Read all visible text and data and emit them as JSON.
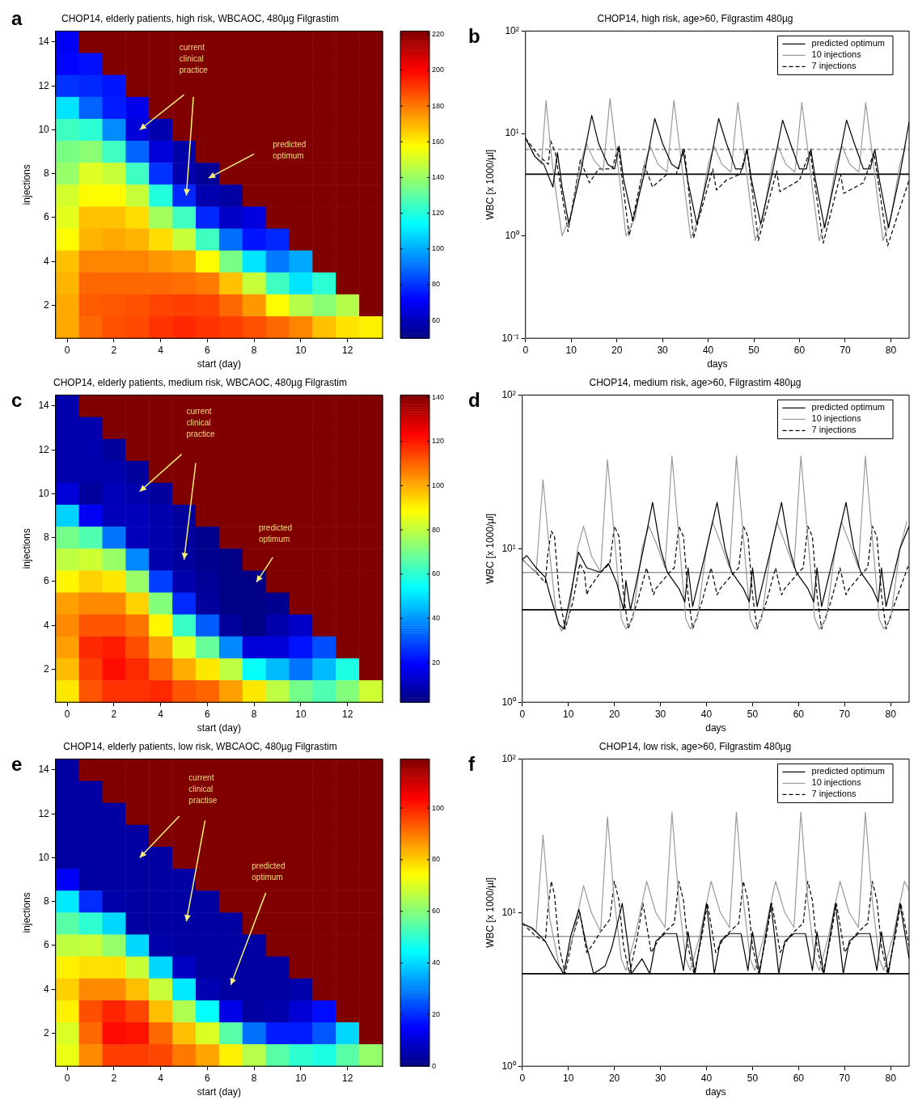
{
  "chart_data": [
    {
      "type": "heatmap",
      "title": "CHOP14, elderly patients, high risk, WBCAOC, 480µg Filgrastim",
      "xlabel": "start (day)",
      "ylabel": "injections",
      "annotations": [
        "a",
        "current clinical practice",
        "predicted optimum"
      ],
      "categories": [
        "0",
        null,
        "2",
        null,
        "4",
        null,
        "6",
        null,
        "8",
        null,
        "10",
        null,
        "12",
        null
      ],
      "y_categories": [
        "14",
        null,
        "12",
        null,
        "10",
        null,
        "8",
        null,
        "6",
        null,
        "4",
        null,
        "2",
        null
      ],
      "clim": [
        50,
        222
      ],
      "cticks": [
        60,
        80,
        100,
        120,
        140,
        160,
        180,
        200,
        220
      ],
      "cells": [
        [
          70,
          222,
          222,
          222,
          222,
          222,
          222,
          222,
          222,
          222,
          222,
          222,
          222,
          222
        ],
        [
          72,
          74,
          222,
          222,
          222,
          222,
          222,
          222,
          222,
          222,
          222,
          222,
          222,
          222
        ],
        [
          80,
          78,
          75,
          222,
          222,
          222,
          222,
          222,
          222,
          222,
          222,
          222,
          222,
          222
        ],
        [
          110,
          88,
          76,
          68,
          222,
          222,
          222,
          222,
          222,
          222,
          222,
          222,
          222,
          222
        ],
        [
          125,
          122,
          95,
          65,
          58,
          222,
          222,
          222,
          222,
          222,
          222,
          222,
          222,
          222
        ],
        [
          135,
          138,
          125,
          88,
          65,
          57,
          222,
          222,
          222,
          222,
          222,
          222,
          222,
          222
        ],
        [
          140,
          152,
          148,
          125,
          80,
          58,
          54,
          222,
          222,
          222,
          222,
          222,
          222,
          222
        ],
        [
          150,
          158,
          158,
          148,
          120,
          78,
          58,
          56,
          222,
          222,
          222,
          222,
          222,
          222
        ],
        [
          153,
          168,
          168,
          163,
          142,
          125,
          78,
          62,
          66,
          222,
          222,
          222,
          222,
          222
        ],
        [
          158,
          170,
          172,
          170,
          163,
          148,
          125,
          90,
          75,
          78,
          222,
          222,
          222,
          222
        ],
        [
          168,
          178,
          178,
          178,
          175,
          173,
          158,
          135,
          110,
          92,
          100,
          222,
          222,
          222
        ],
        [
          170,
          183,
          183,
          183,
          183,
          182,
          180,
          168,
          148,
          125,
          110,
          122,
          222,
          222
        ],
        [
          172,
          185,
          186,
          187,
          189,
          190,
          189,
          183,
          175,
          158,
          145,
          138,
          145,
          222
        ],
        [
          172,
          183,
          187,
          188,
          192,
          194,
          192,
          190,
          187,
          183,
          178,
          168,
          162,
          160
        ]
      ]
    },
    {
      "type": "line",
      "title": "CHOP14, high risk, age>60, Filgrastim 480µg",
      "xlabel": "days",
      "ylabel": "WBC [x 1000/µl]",
      "annotations": [
        "b"
      ],
      "log": true,
      "legend": "top right",
      "xlim": [
        0,
        84
      ],
      "xticks": [
        0,
        10,
        20,
        30,
        40,
        50,
        60,
        70,
        80
      ],
      "ylim": [
        0.1,
        100
      ],
      "yticks": [
        {
          "value": 0.1,
          "label": "10⁻¹"
        },
        {
          "value": 1,
          "label": "10⁰"
        },
        {
          "value": 10,
          "label": "10¹"
        },
        {
          "value": 100,
          "label": "10²"
        }
      ],
      "ref_lines": [
        {
          "axis": "y",
          "value": 4,
          "color": "#000000"
        },
        {
          "axis": "y",
          "value": 7,
          "color": "#999999",
          "line_style": "dashed"
        }
      ],
      "series": [
        {
          "name": "predicted optimum",
          "color": "#000000",
          "x": [
            0,
            2,
            4,
            6,
            7,
            8,
            9.5,
            12,
            14.5,
            16,
            18,
            19.5,
            20.5,
            21.5,
            23.5,
            26,
            28.3,
            30,
            32,
            33.5,
            34.5,
            35.5,
            37.5,
            40,
            42.3,
            44,
            46,
            47.5,
            48.5,
            49.5,
            51.5,
            54,
            56.3,
            58,
            60,
            61.5,
            62.5,
            63.5,
            65.5,
            68,
            70.3,
            72,
            74,
            75.5,
            76.5,
            77.5,
            79.5,
            82,
            84
          ],
          "values": [
            9,
            6,
            5,
            3,
            6.5,
            3,
            1.3,
            4,
            15,
            8,
            5,
            4.5,
            7.5,
            3.5,
            1.4,
            4,
            14,
            8,
            5,
            4.5,
            7,
            3.5,
            1.3,
            4,
            14,
            8,
            4.5,
            4.5,
            7,
            3.5,
            1.3,
            4,
            13.5,
            8,
            4.5,
            4.5,
            7,
            3.5,
            1.2,
            4,
            13.5,
            8,
            4.5,
            4.5,
            7,
            3.5,
            1.2,
            4,
            13
          ]
        },
        {
          "name": "10 injections",
          "color": "#999999",
          "x": [
            0,
            2,
            3.5,
            4.5,
            5.5,
            6.5,
            8,
            10,
            12,
            13.3,
            15,
            17,
            18.5,
            19.8,
            21,
            22,
            24,
            26,
            27.3,
            29,
            31,
            32.5,
            33.8,
            35,
            36.2,
            38,
            40,
            41.3,
            43,
            45,
            46.5,
            47.8,
            49,
            50.3,
            52,
            54,
            55.3,
            57,
            59,
            60.5,
            61.8,
            63,
            64.3,
            66,
            68,
            69.3,
            71,
            73,
            74.5,
            75.8,
            77,
            78.3,
            80,
            82,
            83.3
          ],
          "values": [
            9,
            6,
            5,
            21,
            7,
            3,
            1.0,
            1.6,
            5,
            8,
            5.5,
            4.3,
            22,
            7,
            2.5,
            1.0,
            1.5,
            5,
            7.5,
            5,
            4.2,
            21,
            7,
            2.5,
            0.95,
            1.5,
            5,
            7.5,
            5,
            4.2,
            20,
            7,
            2.5,
            0.9,
            1.5,
            5,
            7.5,
            5,
            4.2,
            20,
            7,
            2.5,
            0.9,
            1.5,
            5,
            7.5,
            5,
            4.2,
            20,
            7,
            2.5,
            0.9,
            1.5,
            5,
            7.5
          ]
        },
        {
          "name": "7 injections",
          "color": "#000000",
          "line_style": "dashed",
          "x": [
            0,
            3,
            5,
            5.5,
            6.5,
            9.3,
            12,
            14,
            16,
            19,
            20.3,
            22.7,
            26,
            27.8,
            31,
            33,
            34.8,
            36.8,
            41,
            41.8,
            44,
            47,
            48.5,
            51,
            55,
            55.7,
            60,
            62.3,
            65.2,
            69,
            69.7,
            74,
            76.3,
            79.3,
            84
          ],
          "values": [
            9,
            6,
            5,
            8.5,
            6.5,
            1.1,
            5.5,
            3.3,
            4.5,
            4.5,
            7.5,
            1.0,
            5,
            3,
            4,
            4,
            7,
            0.95,
            4.5,
            2.8,
            3.5,
            4,
            7,
            0.9,
            4.3,
            2.7,
            3.5,
            6.8,
            0.85,
            4,
            2.6,
            3.3,
            6.5,
            0.8,
            3.5
          ]
        }
      ]
    },
    {
      "type": "heatmap",
      "title": "CHOP14, elderly patients, medium risk, WBCAOC, 480µg Filgrastim",
      "xlabel": "start (day)",
      "ylabel": "injections",
      "annotations": [
        "c",
        "current clinical practice",
        "predicted optimum"
      ],
      "categories": [
        "0",
        null,
        "2",
        null,
        "4",
        null,
        "6",
        null,
        "8",
        null,
        "10",
        null,
        "12",
        null
      ],
      "y_categories": [
        "14",
        null,
        "12",
        null,
        "10",
        null,
        "8",
        null,
        "6",
        null,
        "4",
        null,
        "2",
        null
      ],
      "clim": [
        2,
        141
      ],
      "cticks": [
        20,
        40,
        60,
        80,
        100,
        120,
        140
      ],
      "cells": [
        [
          8,
          141,
          141,
          141,
          141,
          141,
          141,
          141,
          141,
          141,
          141,
          141,
          141,
          141
        ],
        [
          8,
          8,
          141,
          141,
          141,
          141,
          141,
          141,
          141,
          141,
          141,
          141,
          141,
          141
        ],
        [
          8,
          8,
          6,
          141,
          141,
          141,
          141,
          141,
          141,
          141,
          141,
          141,
          141,
          141
        ],
        [
          8,
          8,
          8,
          6,
          141,
          141,
          141,
          141,
          141,
          141,
          141,
          141,
          141,
          141
        ],
        [
          14,
          6,
          10,
          8,
          6,
          141,
          141,
          141,
          141,
          141,
          141,
          141,
          141,
          141
        ],
        [
          48,
          18,
          10,
          10,
          8,
          6,
          141,
          141,
          141,
          141,
          141,
          141,
          141,
          141
        ],
        [
          70,
          65,
          35,
          10,
          8,
          6,
          4,
          141,
          141,
          141,
          141,
          141,
          141,
          141
        ],
        [
          80,
          82,
          75,
          38,
          8,
          6,
          4,
          3,
          141,
          141,
          141,
          141,
          141,
          141
        ],
        [
          90,
          95,
          92,
          75,
          28,
          8,
          5,
          3,
          3,
          141,
          141,
          141,
          141,
          141
        ],
        [
          102,
          105,
          105,
          95,
          72,
          25,
          6,
          3,
          3,
          4,
          141,
          141,
          141,
          141
        ],
        [
          105,
          112,
          112,
          108,
          90,
          62,
          32,
          6,
          3,
          8,
          12,
          141,
          141,
          141
        ],
        [
          102,
          118,
          120,
          113,
          102,
          85,
          68,
          38,
          14,
          14,
          22,
          30,
          141,
          141
        ],
        [
          98,
          115,
          122,
          118,
          110,
          100,
          92,
          80,
          55,
          45,
          35,
          45,
          58,
          141
        ],
        [
          92,
          112,
          117,
          117,
          118,
          112,
          110,
          102,
          92,
          80,
          70,
          65,
          72,
          82
        ]
      ]
    },
    {
      "type": "line",
      "title": "CHOP14, medium risk, age>60, Filgrastim 480µg",
      "xlabel": "days",
      "ylabel": "WBC [x 1000/µl]",
      "annotations": [
        "d"
      ],
      "log": true,
      "legend": "top right",
      "xlim": [
        0,
        84
      ],
      "xticks": [
        0,
        10,
        20,
        30,
        40,
        50,
        60,
        70,
        80
      ],
      "ylim": [
        1,
        100
      ],
      "yticks": [
        {
          "value": 1,
          "label": "10⁰"
        },
        {
          "value": 10,
          "label": "10¹"
        },
        {
          "value": 100,
          "label": "10²"
        }
      ],
      "ref_lines": [
        {
          "axis": "y",
          "value": 4,
          "color": "#000000"
        },
        {
          "axis": "y",
          "value": 7,
          "color": "#999999"
        }
      ],
      "series": [
        {
          "name": "predicted optimum",
          "color": "#000000",
          "x": [
            0,
            1,
            3,
            5,
            6,
            8,
            9,
            10.5,
            12.2,
            14,
            17,
            18.7,
            20.5,
            22,
            22.5,
            23.5,
            26,
            28.3,
            30,
            31.5,
            34,
            35.3,
            36,
            37,
            40,
            42.3,
            44,
            45.5,
            48,
            49.3,
            50,
            51,
            54,
            56.3,
            58,
            59.5,
            62,
            63.3,
            64,
            65,
            68,
            70.3,
            72,
            73.5,
            76,
            77.3,
            78,
            79,
            82,
            84
          ],
          "values": [
            8.5,
            9,
            7.5,
            6.5,
            5,
            3.2,
            3.0,
            5,
            9.5,
            7.5,
            7,
            8,
            6,
            4,
            6.2,
            4,
            9,
            20,
            10,
            7,
            5.5,
            4.5,
            7.5,
            4.2,
            10,
            20,
            10,
            7,
            5.5,
            4.5,
            7.5,
            4.2,
            10,
            20,
            10,
            7,
            5.5,
            4.5,
            7.5,
            4.2,
            10,
            20,
            10,
            7,
            5.5,
            4.5,
            7.5,
            4.2,
            10,
            14
          ]
        },
        {
          "name": "10 injections",
          "color": "#999999",
          "x": [
            0,
            3,
            4.5,
            6,
            7.5,
            8.5,
            10,
            12,
            13.3,
            15,
            17,
            18.5,
            20,
            21.5,
            22.5,
            24,
            26,
            27.5,
            29,
            31,
            32.5,
            34,
            35.5,
            36.5,
            38,
            40,
            41.3,
            43,
            45,
            46.5,
            48,
            49.5,
            50.5,
            52,
            54,
            55.3,
            57,
            59,
            60.5,
            62,
            63.5,
            64.5,
            66,
            68,
            69.3,
            71,
            73,
            74.5,
            76,
            77.5,
            78.5,
            80,
            82,
            83.5
          ],
          "values": [
            8.5,
            7,
            28,
            9,
            3.5,
            2.9,
            3.5,
            10,
            14,
            9,
            7,
            38,
            12,
            3.5,
            3.0,
            3.5,
            10,
            14,
            11,
            7.5,
            40,
            12,
            3.5,
            3.0,
            3.5,
            10,
            15,
            11,
            7.5,
            40,
            12,
            3.5,
            3.0,
            3.5,
            10,
            15,
            11,
            7.5,
            40,
            12,
            3.5,
            3.0,
            3.5,
            10,
            15,
            11,
            7.5,
            40,
            12,
            3.5,
            3.0,
            3.5,
            10,
            15
          ]
        },
        {
          "name": "7 injections",
          "color": "#000000",
          "line_style": "dashed",
          "x": [
            0,
            3,
            5,
            5.5,
            6.3,
            7,
            8,
            9.3,
            11,
            12.5,
            13.5,
            14,
            14.5,
            17,
            19,
            20,
            21,
            22,
            23,
            25,
            27,
            28.5,
            29,
            32,
            33,
            34,
            35,
            36,
            37,
            39,
            41,
            42.3,
            43,
            46,
            47,
            48,
            49,
            50,
            51,
            53,
            55,
            56.3,
            57,
            60,
            61,
            62,
            63,
            64,
            65,
            67,
            69,
            70.3,
            71,
            74,
            75,
            76,
            77,
            78,
            79,
            81,
            84
          ],
          "values": [
            8.5,
            7,
            6,
            9,
            13,
            12,
            5,
            3,
            4.5,
            8,
            7,
            5,
            5.5,
            7,
            8,
            14,
            12,
            5,
            3,
            4.5,
            7.5,
            5,
            5.5,
            7,
            7.5,
            14,
            12,
            5,
            3,
            4.5,
            7.5,
            5,
            5.5,
            7,
            7.5,
            14,
            12,
            5,
            3,
            4.5,
            7.5,
            5,
            5.5,
            7,
            7.5,
            14,
            12,
            5,
            3,
            4.5,
            7.5,
            5,
            5.5,
            7,
            7.5,
            14,
            12,
            5,
            3,
            4.5,
            8
          ]
        }
      ]
    },
    {
      "type": "heatmap",
      "title": "CHOP14, elderly patients, low risk, WBCAOC, 480µg Filgrastim",
      "xlabel": "start (day)",
      "ylabel": "injections",
      "annotations": [
        "e",
        "current clinical practise",
        "predicted optimum"
      ],
      "categories": [
        "0",
        null,
        "2",
        null,
        "4",
        null,
        "6",
        null,
        "8",
        null,
        "10",
        null,
        "12",
        null
      ],
      "y_categories": [
        "14",
        null,
        "12",
        null,
        "10",
        null,
        "8",
        null,
        "6",
        null,
        "4",
        null,
        "2",
        null
      ],
      "clim": [
        0,
        119
      ],
      "cticks": [
        0,
        20,
        40,
        60,
        80,
        100
      ],
      "cells": [
        [
          4,
          119,
          119,
          119,
          119,
          119,
          119,
          119,
          119,
          119,
          119,
          119,
          119,
          119
        ],
        [
          4,
          4,
          119,
          119,
          119,
          119,
          119,
          119,
          119,
          119,
          119,
          119,
          119,
          119
        ],
        [
          4,
          4,
          4,
          119,
          119,
          119,
          119,
          119,
          119,
          119,
          119,
          119,
          119,
          119
        ],
        [
          4,
          4,
          4,
          4,
          119,
          119,
          119,
          119,
          119,
          119,
          119,
          119,
          119,
          119
        ],
        [
          4,
          4,
          4,
          4,
          4,
          119,
          119,
          119,
          119,
          119,
          119,
          119,
          119,
          119
        ],
        [
          14,
          4,
          4,
          4,
          4,
          4,
          119,
          119,
          119,
          119,
          119,
          119,
          119,
          119
        ],
        [
          42,
          20,
          5,
          4,
          4,
          4,
          4,
          119,
          119,
          119,
          119,
          119,
          119,
          119
        ],
        [
          55,
          50,
          40,
          4,
          4,
          4,
          4,
          4,
          119,
          119,
          119,
          119,
          119,
          119
        ],
        [
          67,
          68,
          62,
          40,
          5,
          4,
          4,
          4,
          4,
          119,
          119,
          119,
          119,
          119
        ],
        [
          76,
          78,
          78,
          68,
          40,
          8,
          4,
          4,
          4,
          4,
          119,
          119,
          119,
          119
        ],
        [
          80,
          88,
          88,
          82,
          68,
          42,
          6,
          4,
          4,
          4,
          5,
          119,
          119,
          119
        ],
        [
          76,
          95,
          100,
          96,
          82,
          65,
          45,
          12,
          4,
          5,
          10,
          16,
          119,
          119
        ],
        [
          70,
          92,
          103,
          102,
          92,
          82,
          70,
          55,
          28,
          18,
          18,
          25,
          40,
          119
        ],
        [
          72,
          88,
          97,
          97,
          96,
          90,
          85,
          76,
          66,
          55,
          50,
          48,
          55,
          62
        ]
      ]
    },
    {
      "type": "line",
      "title": "CHOP14, low risk, age>60, Filgrastim 480µg",
      "xlabel": "days",
      "ylabel": "WBC [x 1000/µl]",
      "annotations": [
        "f"
      ],
      "log": true,
      "legend": "top right",
      "xlim": [
        0,
        84
      ],
      "xticks": [
        0,
        10,
        20,
        30,
        40,
        50,
        60,
        70,
        80
      ],
      "ylim": [
        1,
        100
      ],
      "yticks": [
        {
          "value": 1,
          "label": "10⁰"
        },
        {
          "value": 10,
          "label": "10¹"
        },
        {
          "value": 100,
          "label": "10²"
        }
      ],
      "ref_lines": [
        {
          "axis": "y",
          "value": 4,
          "color": "#000000"
        },
        {
          "axis": "y",
          "value": 7,
          "color": "#999999"
        }
      ],
      "series": [
        {
          "name": "predicted optimum",
          "color": "#000000",
          "x": [
            0,
            2,
            4,
            5,
            7,
            9,
            10.5,
            12.3,
            14,
            15.5,
            18,
            19.5,
            21.7,
            23,
            23.7,
            26,
            27.7,
            29,
            31,
            33.5,
            35,
            36,
            37.5,
            40,
            41.7,
            43,
            45,
            47.5,
            49,
            50,
            51.5,
            54,
            55.7,
            57,
            59,
            61.5,
            63,
            64,
            65.5,
            68,
            69.7,
            71,
            73,
            75.5,
            77,
            78,
            79.5,
            82,
            84
          ],
          "values": [
            8.5,
            8,
            7,
            6.5,
            5,
            4,
            7,
            10.5,
            6,
            4,
            4.5,
            6,
            11.5,
            6,
            4,
            5,
            4,
            6.5,
            7.3,
            7.3,
            4.2,
            7.5,
            4,
            11.5,
            4,
            6.5,
            7.3,
            7.3,
            4.2,
            7.5,
            4,
            11.5,
            4,
            6.5,
            7.3,
            7.3,
            4.2,
            7.5,
            4,
            11.5,
            4,
            6.5,
            7.3,
            7.3,
            4.2,
            7.5,
            4,
            11.5,
            5
          ]
        },
        {
          "name": "10 injections",
          "color": "#999999",
          "x": [
            0,
            3,
            4.5,
            6,
            8,
            9,
            11,
            13.3,
            15,
            17,
            18.5,
            20,
            21.5,
            22.5,
            24.5,
            27,
            29,
            31,
            32.5,
            34,
            35.5,
            36.5,
            38.5,
            41,
            43,
            45,
            46.5,
            48,
            49.5,
            50.5,
            52.5,
            55,
            57,
            59,
            60.5,
            62,
            63.5,
            64.5,
            66.5,
            69,
            71,
            73,
            74.5,
            76,
            77.5,
            78.5,
            80.5,
            83,
            84
          ],
          "values": [
            8.5,
            7.5,
            32,
            9,
            4.5,
            4.2,
            7,
            15,
            10,
            7.5,
            42,
            12,
            5,
            4.2,
            7,
            16,
            10,
            8,
            45,
            12,
            5,
            4.2,
            7,
            16,
            10,
            8,
            45,
            12,
            5,
            4.2,
            7,
            16,
            10,
            8,
            45,
            12,
            5,
            4.2,
            7,
            16,
            10,
            8,
            45,
            12,
            5,
            4.2,
            7,
            16,
            14
          ]
        },
        {
          "name": "7 injections",
          "color": "#000000",
          "line_style": "dashed",
          "x": [
            0,
            3,
            5,
            5.5,
            6.3,
            7,
            8,
            9.3,
            11,
            12.5,
            14,
            15,
            17,
            19,
            20,
            21,
            22,
            23.3,
            25,
            26.2,
            28,
            30,
            32,
            33,
            34,
            35,
            36,
            37.3,
            39,
            40.2,
            42,
            44,
            46,
            47,
            48,
            49,
            50,
            51.3,
            53,
            54.2,
            56,
            58,
            60,
            61,
            62,
            63,
            64,
            65.3,
            67,
            68.2,
            70,
            72,
            74,
            75,
            76,
            77,
            78,
            79.3,
            81,
            82.2,
            84
          ],
          "values": [
            8.5,
            7,
            6.5,
            10,
            16,
            13,
            6,
            4,
            7,
            10,
            5.5,
            6,
            7.5,
            9,
            16,
            12,
            6,
            4,
            7,
            11.5,
            5.5,
            7,
            8,
            8.5,
            16,
            12,
            6,
            4,
            7,
            11.5,
            5.5,
            7,
            8,
            8.5,
            16,
            12,
            6,
            4,
            7,
            11.5,
            5.5,
            7,
            8,
            8.5,
            16,
            12,
            6,
            4,
            7,
            11.5,
            5.5,
            7,
            8,
            8.5,
            16,
            12,
            6,
            4,
            7,
            11.5,
            6
          ]
        }
      ]
    }
  ]
}
